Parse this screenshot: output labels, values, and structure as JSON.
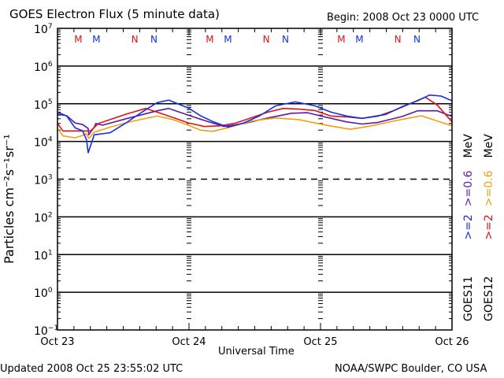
{
  "header": {
    "title": "GOES Electron Flux (5 minute data)",
    "begin": "Begin: 2008 Oct 23 0000 UTC"
  },
  "footer": {
    "updated": "Updated 2008 Oct 25 23:55:02 UTC",
    "credit": "NOAA/SWPC Boulder, CO USA"
  },
  "chart_data": {
    "type": "line",
    "title": "GOES Electron Flux (5 minute data)",
    "xlabel": "Universal Time",
    "ylabel": "Particles cm⁻²s⁻¹sr⁻¹",
    "yscale": "log",
    "ylim": [
      0.1,
      10000000
    ],
    "xlim_hours": [
      0,
      72
    ],
    "x_ticks": [
      {
        "hour": 0,
        "label": "Oct 23"
      },
      {
        "hour": 24,
        "label": "Oct 24"
      },
      {
        "hour": 48,
        "label": "Oct 25"
      },
      {
        "hour": 72,
        "label": "Oct 26"
      }
    ],
    "y_ticks": [
      {
        "exp": 7,
        "base": "10",
        "sup": "7"
      },
      {
        "exp": 6,
        "base": "10",
        "sup": "6"
      },
      {
        "exp": 5,
        "base": "10",
        "sup": "5"
      },
      {
        "exp": 4,
        "base": "10",
        "sup": "4"
      },
      {
        "exp": 3,
        "base": "10",
        "sup": "3"
      },
      {
        "exp": 2,
        "base": "10",
        "sup": "2"
      },
      {
        "exp": 1,
        "base": "10",
        "sup": "1"
      },
      {
        "exp": 0,
        "base": "10",
        "sup": "0"
      },
      {
        "exp": -1,
        "base": "10",
        "sup": "−1"
      }
    ],
    "gridlines": [
      {
        "value": 1000000,
        "style": "solid"
      },
      {
        "value": 100000,
        "style": "solid"
      },
      {
        "value": 10000,
        "style": "solid"
      },
      {
        "value": 1000,
        "style": "dashed"
      },
      {
        "value": 100,
        "style": "solid"
      },
      {
        "value": 10,
        "style": "solid"
      },
      {
        "value": 1,
        "style": "solid"
      }
    ],
    "markers": [
      {
        "hour": 3.8,
        "label": "M",
        "color": "#e01010"
      },
      {
        "hour": 7.1,
        "label": "M",
        "color": "#1030e0"
      },
      {
        "hour": 14.1,
        "label": "N",
        "color": "#e01010"
      },
      {
        "hour": 17.6,
        "label": "N",
        "color": "#1030e0"
      },
      {
        "hour": 27.8,
        "label": "M",
        "color": "#e01010"
      },
      {
        "hour": 31.1,
        "label": "M",
        "color": "#1030e0"
      },
      {
        "hour": 38.1,
        "label": "N",
        "color": "#e01010"
      },
      {
        "hour": 41.6,
        "label": "N",
        "color": "#1030e0"
      },
      {
        "hour": 51.8,
        "label": "M",
        "color": "#e01010"
      },
      {
        "hour": 55.1,
        "label": "M",
        "color": "#1030e0"
      },
      {
        "hour": 62.1,
        "label": "N",
        "color": "#e01010"
      },
      {
        "hour": 65.6,
        "label": "N",
        "color": "#1030e0"
      }
    ],
    "legend": {
      "placement": "right",
      "satellites": [
        {
          "label": "GOES11"
        },
        {
          "label": "GOES12"
        }
      ],
      "entries": [
        {
          "label": ">=2",
          "color": "#1030e0",
          "column": 0
        },
        {
          "label": ">=0.6",
          "color": "#6020b0",
          "column": 0
        },
        {
          "label": "MeV",
          "color": "#000000",
          "column": 0
        },
        {
          "label": ">=2",
          "color": "#e01010",
          "column": 1
        },
        {
          "label": ">=0.6",
          "color": "#f0a010",
          "column": 1
        },
        {
          "label": "MeV",
          "color": "#000000",
          "column": 1
        }
      ]
    },
    "series": [
      {
        "name": "GOES11 >=0.6 MeV",
        "color": "#5a1aa8",
        "points": [
          [
            0,
            53000
          ],
          [
            1.7,
            48000
          ],
          [
            3.2,
            31000
          ],
          [
            4.6,
            28000
          ],
          [
            5.6,
            22000
          ],
          [
            5.7,
            15000
          ],
          [
            6.7,
            24000
          ],
          [
            7.0,
            30000
          ],
          [
            8.2,
            27000
          ],
          [
            12.5,
            40000
          ],
          [
            18.2,
            65000
          ],
          [
            20.3,
            75000
          ],
          [
            23.9,
            50000
          ],
          [
            26.8,
            36000
          ],
          [
            30.4,
            25000
          ],
          [
            34.0,
            30000
          ],
          [
            38.4,
            42000
          ],
          [
            42.7,
            56000
          ],
          [
            45.6,
            58000
          ],
          [
            48.4,
            46000
          ],
          [
            52.8,
            33000
          ],
          [
            55.6,
            29000
          ],
          [
            58.5,
            32000
          ],
          [
            62.9,
            46000
          ],
          [
            65.7,
            65000
          ],
          [
            69.3,
            65000
          ],
          [
            72,
            46000
          ]
        ]
      },
      {
        "name": "GOES12 >=0.6 MeV",
        "color": "#f0a010",
        "points": [
          [
            0,
            22000
          ],
          [
            1.0,
            14000
          ],
          [
            3.2,
            12500
          ],
          [
            4.6,
            14500
          ],
          [
            5.3,
            16000
          ],
          [
            5.7,
            12000
          ],
          [
            6.7,
            17500
          ],
          [
            9.6,
            24000
          ],
          [
            13.9,
            35000
          ],
          [
            18.2,
            47000
          ],
          [
            21.1,
            38000
          ],
          [
            23.9,
            27000
          ],
          [
            26.1,
            20000
          ],
          [
            28.3,
            18500
          ],
          [
            31.1,
            23000
          ],
          [
            35.5,
            35000
          ],
          [
            39.8,
            42000
          ],
          [
            44.1,
            38000
          ],
          [
            48.4,
            28000
          ],
          [
            53.4,
            21000
          ],
          [
            57.0,
            25500
          ],
          [
            61.4,
            35000
          ],
          [
            63.5,
            40000
          ],
          [
            66.4,
            48000
          ],
          [
            69.3,
            35000
          ],
          [
            72,
            26000
          ]
        ]
      },
      {
        "name": "GOES12 >=2 MeV",
        "color": "#e81010",
        "points": [
          [
            0,
            30000
          ],
          [
            1.0,
            19000
          ],
          [
            3.9,
            19000
          ],
          [
            6.0,
            19000
          ],
          [
            7.5,
            30000
          ],
          [
            9.6,
            38000
          ],
          [
            12.5,
            53000
          ],
          [
            16.1,
            75000
          ],
          [
            18.2,
            60000
          ],
          [
            21.1,
            43000
          ],
          [
            23.9,
            31000
          ],
          [
            26.8,
            25000
          ],
          [
            29.7,
            26000
          ],
          [
            32.6,
            31000
          ],
          [
            35.5,
            43000
          ],
          [
            38.4,
            60000
          ],
          [
            41.2,
            75000
          ],
          [
            44.1,
            72000
          ],
          [
            47.0,
            66000
          ],
          [
            49.9,
            47000
          ],
          [
            52.8,
            45000
          ],
          [
            55.6,
            41000
          ],
          [
            58.5,
            47000
          ],
          [
            61.4,
            66000
          ],
          [
            64.3,
            100000
          ],
          [
            67.1,
            150000
          ],
          [
            69.3,
            93000
          ],
          [
            72,
            33000
          ]
        ]
      },
      {
        "name": "GOES11 >=2 MeV",
        "color": "#1030e8",
        "points": [
          [
            0,
            60000
          ],
          [
            1.7,
            47000
          ],
          [
            3.2,
            23000
          ],
          [
            4.6,
            19000
          ],
          [
            5.3,
            11000
          ],
          [
            5.6,
            5000
          ],
          [
            6.7,
            15000
          ],
          [
            9.6,
            17000
          ],
          [
            12.5,
            31000
          ],
          [
            15.4,
            60000
          ],
          [
            18.2,
            107000
          ],
          [
            20.3,
            125000
          ],
          [
            23.9,
            77000
          ],
          [
            26.1,
            48000
          ],
          [
            28.3,
            34000
          ],
          [
            31.1,
            24000
          ],
          [
            34.0,
            31000
          ],
          [
            36.9,
            48000
          ],
          [
            39.8,
            88000
          ],
          [
            43.4,
            112000
          ],
          [
            47.0,
            88000
          ],
          [
            49.9,
            60000
          ],
          [
            52.8,
            47000
          ],
          [
            55.6,
            41000
          ],
          [
            59.9,
            52000
          ],
          [
            62.9,
            84000
          ],
          [
            65.7,
            120000
          ],
          [
            67.9,
            170000
          ],
          [
            70.0,
            160000
          ],
          [
            72,
            120000
          ]
        ]
      }
    ]
  }
}
